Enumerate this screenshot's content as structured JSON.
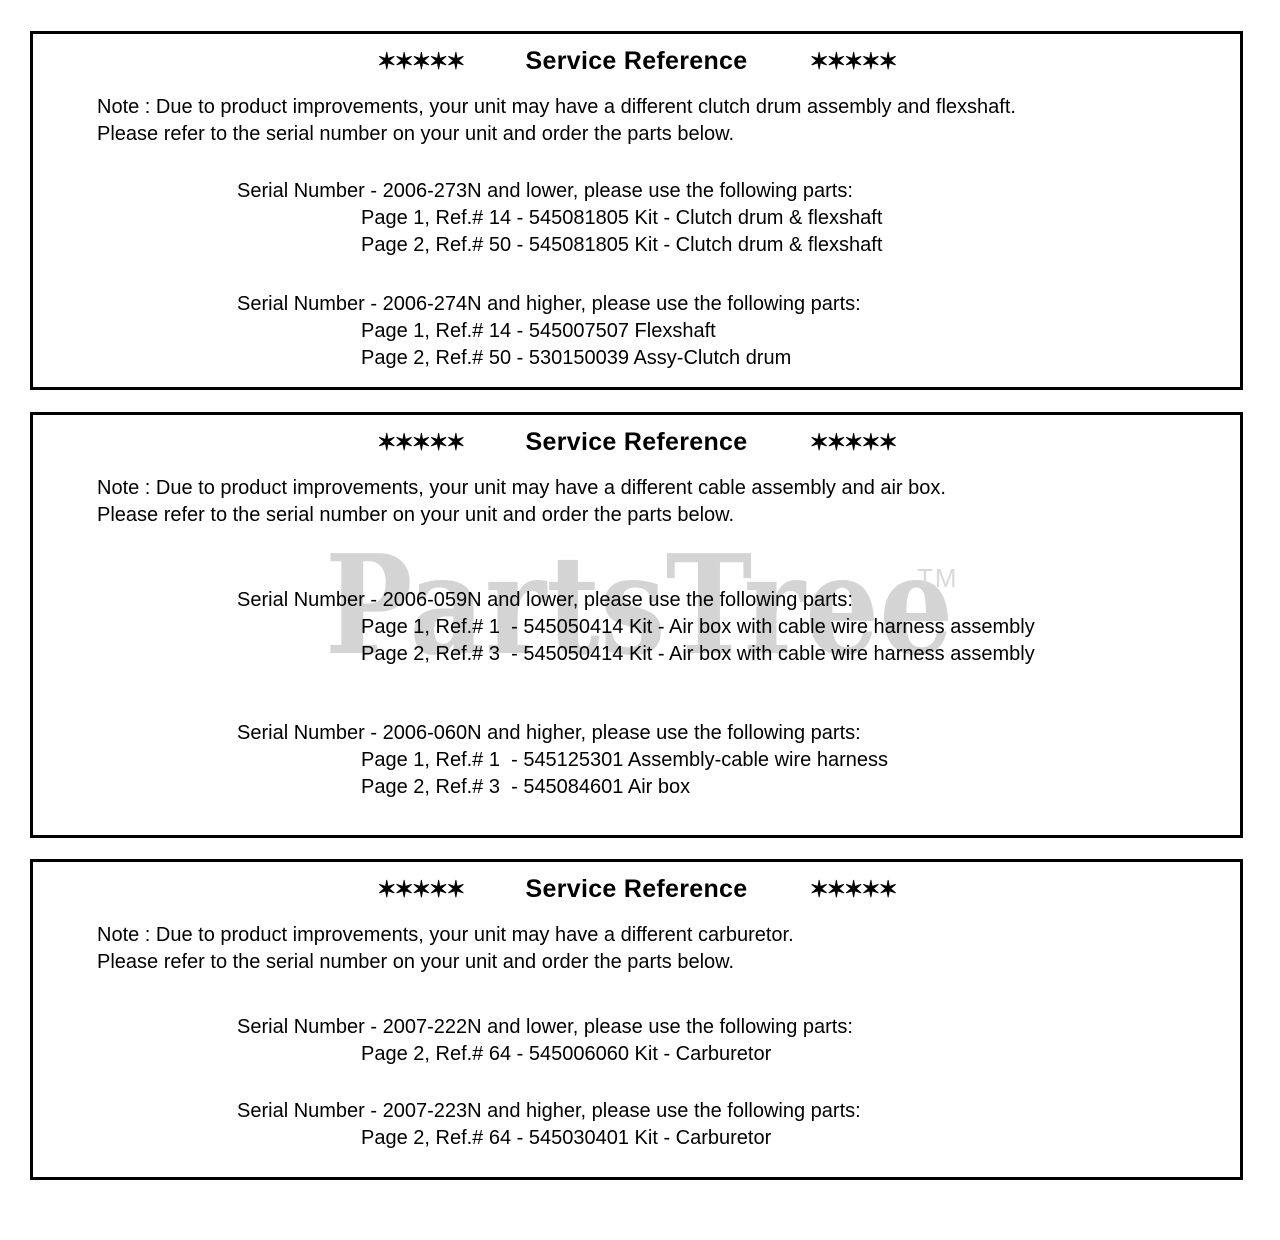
{
  "colors": {
    "text": "#000000",
    "border": "#000000",
    "background": "#ffffff",
    "watermark": "#d4d4d4"
  },
  "watermark": {
    "text": "PartsTree",
    "tm": "TM"
  },
  "sections": [
    {
      "stars": "✶✶✶✶✶",
      "title": "Service Reference",
      "note_lines": [
        "Note : Due to product improvements, your unit may have a different clutch drum assembly and flexshaft.",
        "Please refer to the serial number on your unit and order the parts below."
      ],
      "groups": [
        {
          "serial": "Serial Number - 2006-273N and lower, please use the following parts:",
          "parts": [
            "Page 1, Ref.# 14 - 545081805 Kit - Clutch drum & flexshaft",
            "Page 2, Ref.# 50 - 545081805 Kit - Clutch drum & flexshaft"
          ]
        },
        {
          "serial": "Serial Number - 2006-274N and higher, please use the following parts:",
          "parts": [
            "Page 1, Ref.# 14 - 545007507 Flexshaft",
            "Page 2, Ref.# 50 - 530150039 Assy-Clutch drum"
          ]
        }
      ]
    },
    {
      "stars": "✶✶✶✶✶",
      "title": "Service Reference",
      "note_lines": [
        "Note : Due to product improvements, your unit may have a different cable assembly and air box.",
        "Please refer to the serial number on your unit and order the parts below."
      ],
      "groups": [
        {
          "serial": "Serial Number - 2006-059N and lower, please use the following parts:",
          "parts": [
            "Page 1, Ref.# 1  - 545050414 Kit - Air box with cable wire harness assembly",
            "Page 2, Ref.# 3  - 545050414 Kit - Air box with cable wire harness assembly"
          ]
        },
        {
          "serial": "Serial Number - 2006-060N and higher, please use the following parts:",
          "parts": [
            "Page 1, Ref.# 1  - 545125301 Assembly-cable wire harness",
            "Page 2, Ref.# 3  - 545084601 Air box"
          ]
        }
      ]
    },
    {
      "stars": "✶✶✶✶✶",
      "title": "Service Reference",
      "note_lines": [
        "Note : Due to product improvements, your unit may have a different carburetor.",
        "Please refer to the serial number on your unit and order the parts below."
      ],
      "groups": [
        {
          "serial": "Serial Number - 2007-222N and lower, please use the following parts:",
          "parts": [
            "Page 2, Ref.# 64 - 545006060 Kit - Carburetor"
          ]
        },
        {
          "serial": "Serial Number - 2007-223N and higher, please use the following parts:",
          "parts": [
            "Page 2, Ref.# 64 - 545030401 Kit - Carburetor"
          ]
        }
      ]
    }
  ]
}
